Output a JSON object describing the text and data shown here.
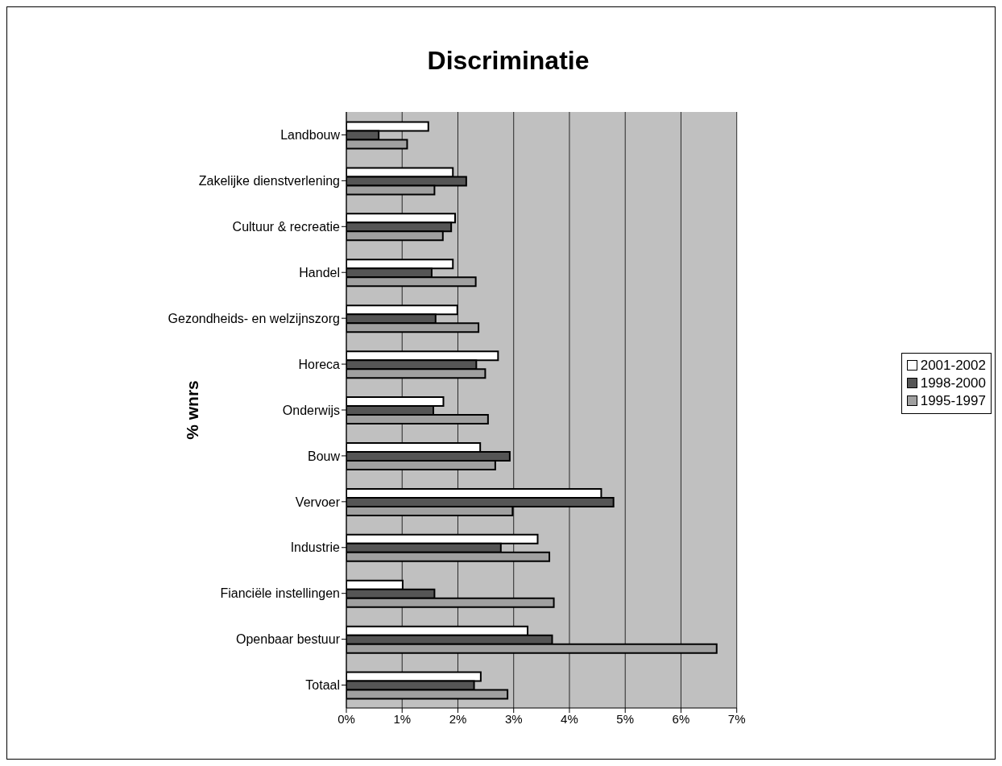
{
  "chart_data": {
    "type": "bar",
    "orientation": "horizontal",
    "title": "Discriminatie",
    "ylabel": "% wnrs",
    "categories": [
      "Landbouw",
      "Zakelijke dienstverlening",
      "Cultuur & recreatie",
      "Handel",
      "Gezondheids- en welzijnszorg",
      "Horeca",
      "Onderwijs",
      "Bouw",
      "Vervoer",
      "Industrie",
      "Fianciële instellingen",
      "Openbaar bestuur",
      "Totaal"
    ],
    "series": [
      {
        "name": "2001-2002",
        "color": "#ffffff",
        "values": [
          1.47,
          1.91,
          1.95,
          1.91,
          1.99,
          2.72,
          1.74,
          2.4,
          4.57,
          3.43,
          1.01,
          3.25,
          2.41
        ]
      },
      {
        "name": "1998-2000",
        "color": "#555555",
        "values": [
          0.58,
          2.15,
          1.88,
          1.53,
          1.6,
          2.33,
          1.56,
          2.93,
          4.79,
          2.77,
          1.58,
          3.69,
          2.29
        ]
      },
      {
        "name": "1995-1997",
        "color": "#a0a0a0",
        "values": [
          1.09,
          1.58,
          1.73,
          2.32,
          2.37,
          2.49,
          2.54,
          2.67,
          2.98,
          3.64,
          3.72,
          6.64,
          2.89
        ]
      }
    ],
    "xlim": [
      0,
      7
    ],
    "xticks": [
      {
        "value": 0,
        "label": "0%"
      },
      {
        "value": 1,
        "label": "1%"
      },
      {
        "value": 2,
        "label": "2%"
      },
      {
        "value": 3,
        "label": "3%"
      },
      {
        "value": 4,
        "label": "4%"
      },
      {
        "value": 5,
        "label": "5%"
      },
      {
        "value": 6,
        "label": "6%"
      },
      {
        "value": 7,
        "label": "7%"
      }
    ],
    "grid": "x",
    "legend": "right"
  }
}
